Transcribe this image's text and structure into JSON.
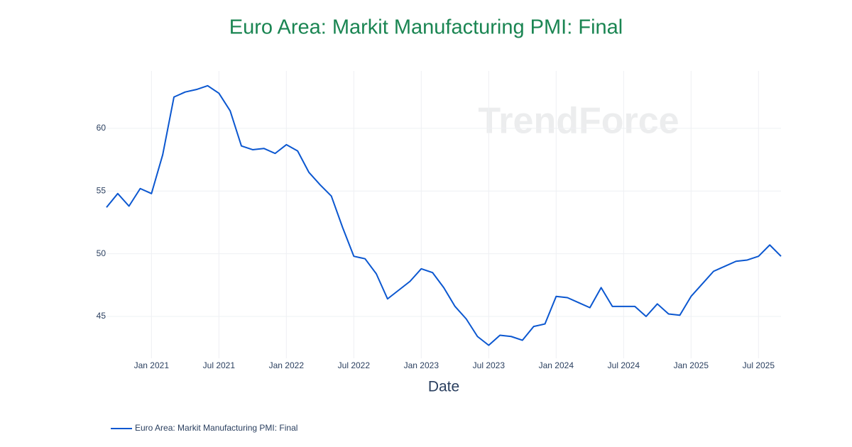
{
  "chart_data": {
    "type": "line",
    "title": "Euro Area: Markit Manufacturing PMI: Final",
    "x_label": "Date",
    "watermark": "TrendForce",
    "x": [
      "2020-09",
      "2020-10",
      "2020-11",
      "2020-12",
      "2021-01",
      "2021-02",
      "2021-03",
      "2021-04",
      "2021-05",
      "2021-06",
      "2021-07",
      "2021-08",
      "2021-09",
      "2021-10",
      "2021-11",
      "2021-12",
      "2022-01",
      "2022-02",
      "2022-03",
      "2022-04",
      "2022-05",
      "2022-06",
      "2022-07",
      "2022-08",
      "2022-09",
      "2022-10",
      "2022-11",
      "2022-12",
      "2023-01",
      "2023-02",
      "2023-03",
      "2023-04",
      "2023-05",
      "2023-06",
      "2023-07",
      "2023-08",
      "2023-09",
      "2023-10",
      "2023-11",
      "2023-12",
      "2024-01",
      "2024-02",
      "2024-03",
      "2024-04",
      "2024-05",
      "2024-06",
      "2024-07",
      "2024-08",
      "2024-09",
      "2024-10",
      "2024-11",
      "2024-12",
      "2025-01",
      "2025-02",
      "2025-03",
      "2025-04",
      "2025-05",
      "2025-06",
      "2025-07",
      "2025-08",
      "2025-09"
    ],
    "series": [
      {
        "name": "Euro Area: Markit Manufacturing PMI: Final",
        "color": "#0b57d0",
        "values": [
          53.7,
          54.8,
          53.8,
          55.2,
          54.8,
          57.9,
          62.5,
          62.9,
          63.1,
          63.4,
          62.8,
          61.4,
          58.6,
          58.3,
          58.4,
          58.0,
          58.7,
          58.2,
          56.5,
          55.5,
          54.6,
          52.1,
          49.8,
          49.6,
          48.4,
          46.4,
          47.1,
          47.8,
          48.8,
          48.5,
          47.3,
          45.8,
          44.8,
          43.4,
          42.7,
          43.5,
          43.4,
          43.1,
          44.2,
          44.4,
          46.6,
          46.5,
          46.1,
          45.7,
          47.3,
          45.8,
          45.8,
          45.8,
          45.0,
          46.0,
          45.2,
          45.1,
          46.6,
          47.6,
          48.6,
          49.0,
          49.4,
          49.5,
          49.8,
          50.7,
          49.8
        ]
      }
    ],
    "xlim": [
      "2020-09",
      "2025-09"
    ],
    "xticks": [
      {
        "value": "2021-01",
        "label": "Jan 2021"
      },
      {
        "value": "2021-07",
        "label": "Jul 2021"
      },
      {
        "value": "2022-01",
        "label": "Jan 2022"
      },
      {
        "value": "2022-07",
        "label": "Jul 2022"
      },
      {
        "value": "2023-01",
        "label": "Jan 2023"
      },
      {
        "value": "2023-07",
        "label": "Jul 2023"
      },
      {
        "value": "2024-01",
        "label": "Jan 2024"
      },
      {
        "value": "2024-07",
        "label": "Jul 2024"
      },
      {
        "value": "2025-01",
        "label": "Jan 2025"
      },
      {
        "value": "2025-07",
        "label": "Jul 2025"
      }
    ],
    "ylim": [
      41.66,
      64.58
    ],
    "yticks": [
      45,
      50,
      55,
      60
    ],
    "grid": true,
    "legend": "bottom-left"
  }
}
